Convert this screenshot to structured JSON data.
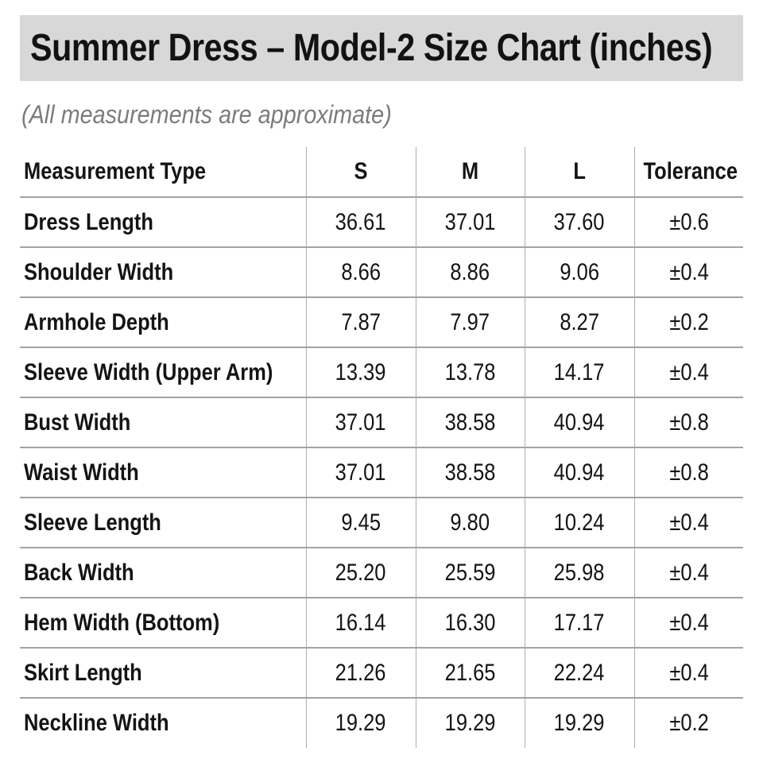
{
  "page": {
    "title": "Summer Dress – Model-2 Size Chart (inches)",
    "subtitle": "(All measurements are approximate)"
  },
  "table": {
    "headers": [
      "Measurement Type",
      "S",
      "M",
      "L",
      "Tolerance"
    ],
    "rows": [
      {
        "label": "Dress Length",
        "s": "36.61",
        "m": "37.01",
        "l": "37.60",
        "tol": "±0.6"
      },
      {
        "label": "Shoulder Width",
        "s": "8.66",
        "m": "8.86",
        "l": "9.06",
        "tol": "±0.4"
      },
      {
        "label": "Armhole Depth",
        "s": "7.87",
        "m": "7.97",
        "l": "8.27",
        "tol": "±0.2"
      },
      {
        "label": "Sleeve Width (Upper Arm)",
        "s": "13.39",
        "m": "13.78",
        "l": "14.17",
        "tol": "±0.4"
      },
      {
        "label": "Bust Width",
        "s": "37.01",
        "m": "38.58",
        "l": "40.94",
        "tol": "±0.8"
      },
      {
        "label": "Waist Width",
        "s": "37.01",
        "m": "38.58",
        "l": "40.94",
        "tol": "±0.8"
      },
      {
        "label": "Sleeve Length",
        "s": "9.45",
        "m": "9.80",
        "l": "10.24",
        "tol": "±0.4"
      },
      {
        "label": "Back Width",
        "s": "25.20",
        "m": "25.59",
        "l": "25.98",
        "tol": "±0.4"
      },
      {
        "label": "Hem Width (Bottom)",
        "s": "16.14",
        "m": "16.30",
        "l": "17.17",
        "tol": "±0.4"
      },
      {
        "label": "Skirt Length",
        "s": "21.26",
        "m": "21.65",
        "l": "22.24",
        "tol": "±0.4"
      },
      {
        "label": "Neckline Width",
        "s": "19.29",
        "m": "19.29",
        "l": "19.29",
        "tol": "±0.2"
      }
    ]
  },
  "colors": {
    "page_bg": "#ffffff",
    "title_bar_bg": "#d8d8d8",
    "title_text": "#121212",
    "subtitle_text": "#7c7c7c",
    "cell_text": "#141414",
    "row_line": "#a3a3a3",
    "column_line": "#aeaeae"
  }
}
